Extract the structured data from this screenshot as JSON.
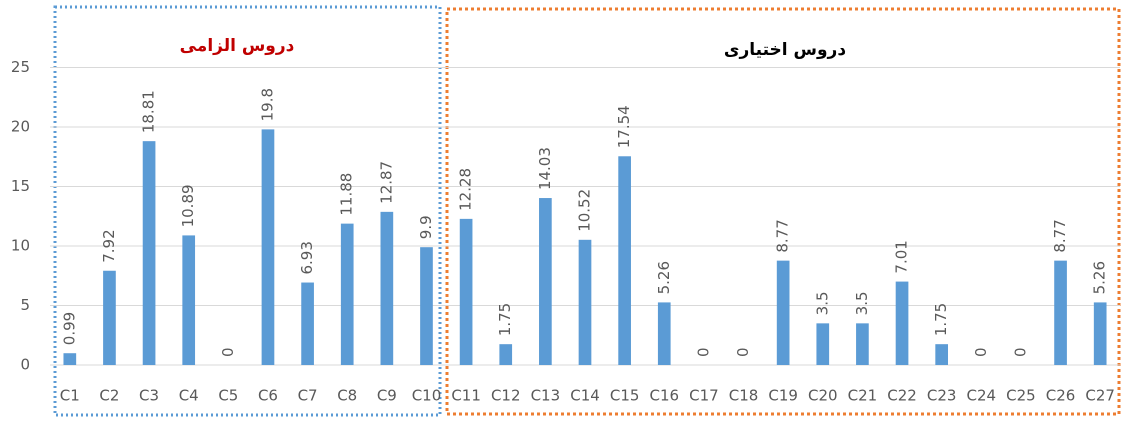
{
  "chart_data": {
    "type": "bar",
    "categories": [
      "C1",
      "C2",
      "C3",
      "C4",
      "C5",
      "C6",
      "C7",
      "C8",
      "C9",
      "C10",
      "C11",
      "C12",
      "C13",
      "C14",
      "C15",
      "C16",
      "C17",
      "C18",
      "C19",
      "C20",
      "C21",
      "C22",
      "C23",
      "C24",
      "C25",
      "C26",
      "C27"
    ],
    "values": [
      0.99,
      7.92,
      18.81,
      10.89,
      0,
      19.8,
      6.93,
      11.88,
      12.87,
      9.9,
      12.28,
      1.75,
      14.03,
      10.52,
      17.54,
      5.26,
      0,
      0,
      8.77,
      3.5,
      3.5,
      7.01,
      1.75,
      0,
      0,
      8.77,
      5.26
    ],
    "color": "#5b9bd5",
    "ylim": [
      0,
      30
    ],
    "yticks": [
      0,
      5,
      10,
      15,
      20,
      25
    ],
    "grid": true,
    "annotations": [
      {
        "text": "دروس الزامی",
        "color": "#c00000"
      },
      {
        "text": "دروس اختیاری",
        "color": "#000000"
      }
    ]
  }
}
